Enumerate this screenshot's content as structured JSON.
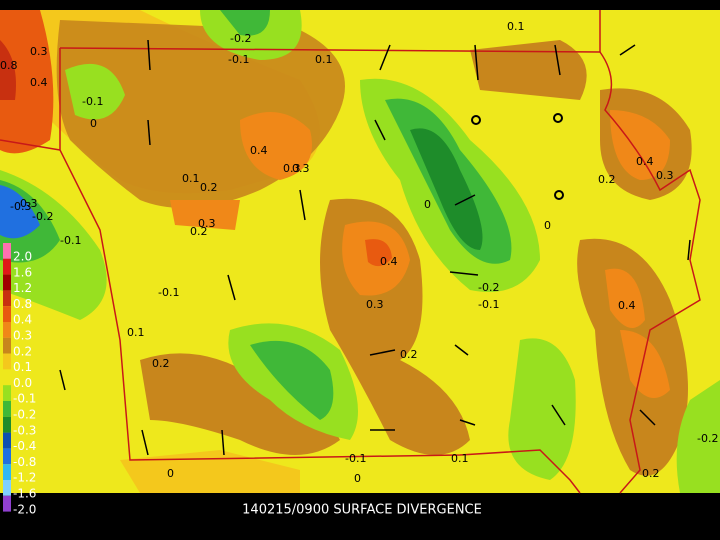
{
  "caption": "140215/0900 SURFACE DIVERGENCE",
  "legend": [
    {
      "label": "2.0",
      "color": "#ff70b0"
    },
    {
      "label": "1.6",
      "color": "#e01818"
    },
    {
      "label": "1.2",
      "color": "#a00000"
    },
    {
      "label": "0.8",
      "color": "#c83010"
    },
    {
      "label": "0.4",
      "color": "#e85a10"
    },
    {
      "label": "0.3",
      "color": "#f08818"
    },
    {
      "label": "0.2",
      "color": "#c8861c"
    },
    {
      "label": "0.1",
      "color": "#f4c81c"
    },
    {
      "label": "0.0",
      "color": "#eee81c"
    },
    {
      "label": "-0.1",
      "color": "#98e020"
    },
    {
      "label": "-0.2",
      "color": "#40b838"
    },
    {
      "label": "-0.3",
      "color": "#1e8c2a"
    },
    {
      "label": "-0.4",
      "color": "#1050b0"
    },
    {
      "label": "-0.8",
      "color": "#2070e0"
    },
    {
      "label": "-1.2",
      "color": "#30b8f0"
    },
    {
      "label": "-1.6",
      "color": "#80d0ff"
    },
    {
      "label": "-2.0",
      "color": "#9040d0"
    }
  ],
  "contour_labels": [
    "0.1",
    "-0.2",
    "-0.1",
    "0.1",
    "0.3",
    "0.8",
    "0.4",
    "-0.1",
    "0",
    "0.4",
    "0.3",
    "0.1",
    "0.2",
    "0.3",
    "0.4",
    "0.3",
    "0.2",
    "0.3",
    "-0.3",
    "-0.2",
    "-0.1",
    "0",
    "-0.2",
    "-0.1",
    "0",
    "-0.1",
    "0.1",
    "0.2",
    "0.3",
    "0.4",
    "0.2",
    "0.4",
    "0.3",
    "0.2",
    "-0.1",
    "0",
    "0.1",
    "0",
    "0.2",
    "-0.2"
  ]
}
